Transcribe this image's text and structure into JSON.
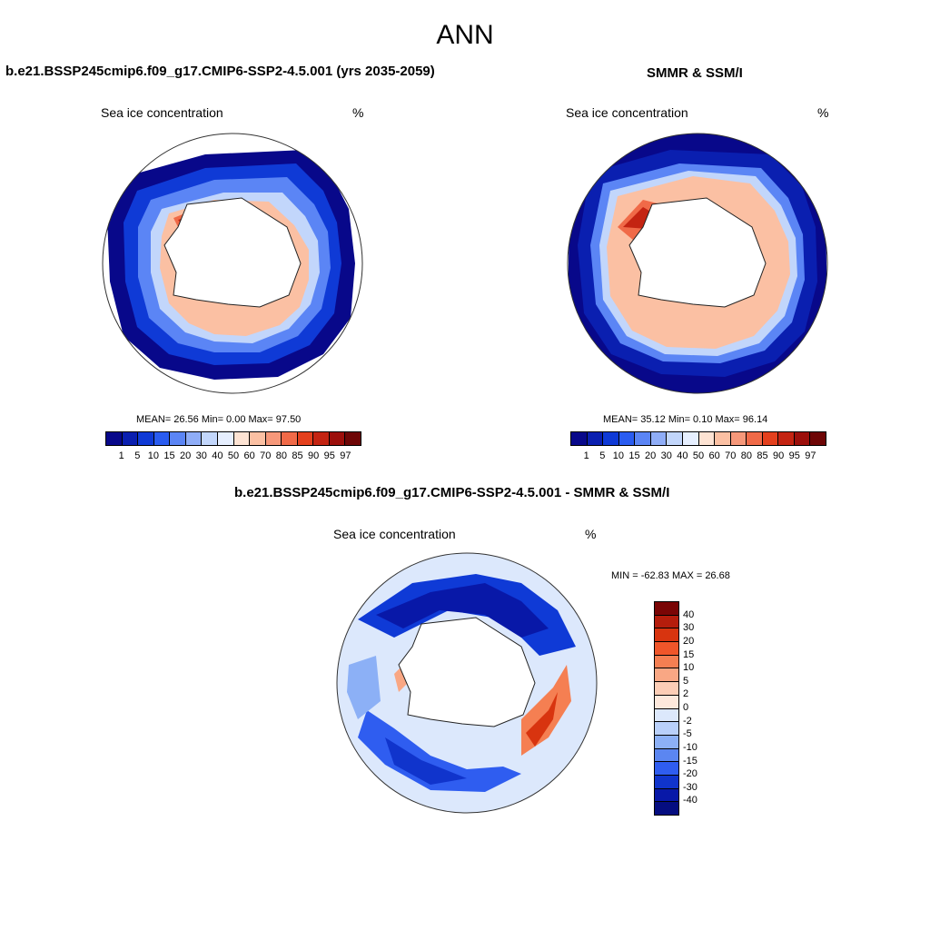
{
  "figure": {
    "season": "ANN",
    "variable_label": "Sea ice concentration",
    "units": "%"
  },
  "panels": [
    {
      "title": "b.e21.BSSP245cmip6.f09_g17.CMIP6-SSP2-4.5.001 (yrs 2035-2059)",
      "stats": "MEAN=  26.56  Min=   0.00  Max=  97.50"
    },
    {
      "title": "SMMR & SSM/I",
      "stats": "MEAN=  35.12  Min=   0.10  Max=  96.14"
    },
    {
      "title": "b.e21.BSSP245cmip6.f09_g17.CMIP6-SSP2-4.5.001 - SMMR & SSM/I",
      "stats": "MIN = -62.83 MAX =  26.68"
    }
  ],
  "colorbar_main": {
    "labels": [
      "1",
      "5",
      "10",
      "15",
      "20",
      "30",
      "40",
      "50",
      "60",
      "70",
      "80",
      "85",
      "90",
      "95",
      "97"
    ],
    "colors": [
      "#08088a",
      "#0a1fb0",
      "#0f3ad6",
      "#2a5cf0",
      "#5b85f5",
      "#8fadf7",
      "#c2d6fb",
      "#e6efff",
      "#fde3d3",
      "#fbc0a3",
      "#f6987a",
      "#f06a48",
      "#e4401d",
      "#c42412",
      "#9c0f0b",
      "#6e0606"
    ]
  },
  "colorbar_diff": {
    "labels": [
      "40",
      "30",
      "20",
      "15",
      "10",
      "5",
      "2",
      "0",
      "-2",
      "-5",
      "-10",
      "-15",
      "-20",
      "-30",
      "-40"
    ],
    "colors": [
      "#7a0505",
      "#b51d0c",
      "#d8340f",
      "#f0562a",
      "#f57f52",
      "#f9a784",
      "#fccdb6",
      "#fde8dc",
      "#dce8fc",
      "#b9d0fa",
      "#8cb0f6",
      "#5b86f1",
      "#2f5df0",
      "#1034cc",
      "#0818a8",
      "#050d80"
    ]
  }
}
